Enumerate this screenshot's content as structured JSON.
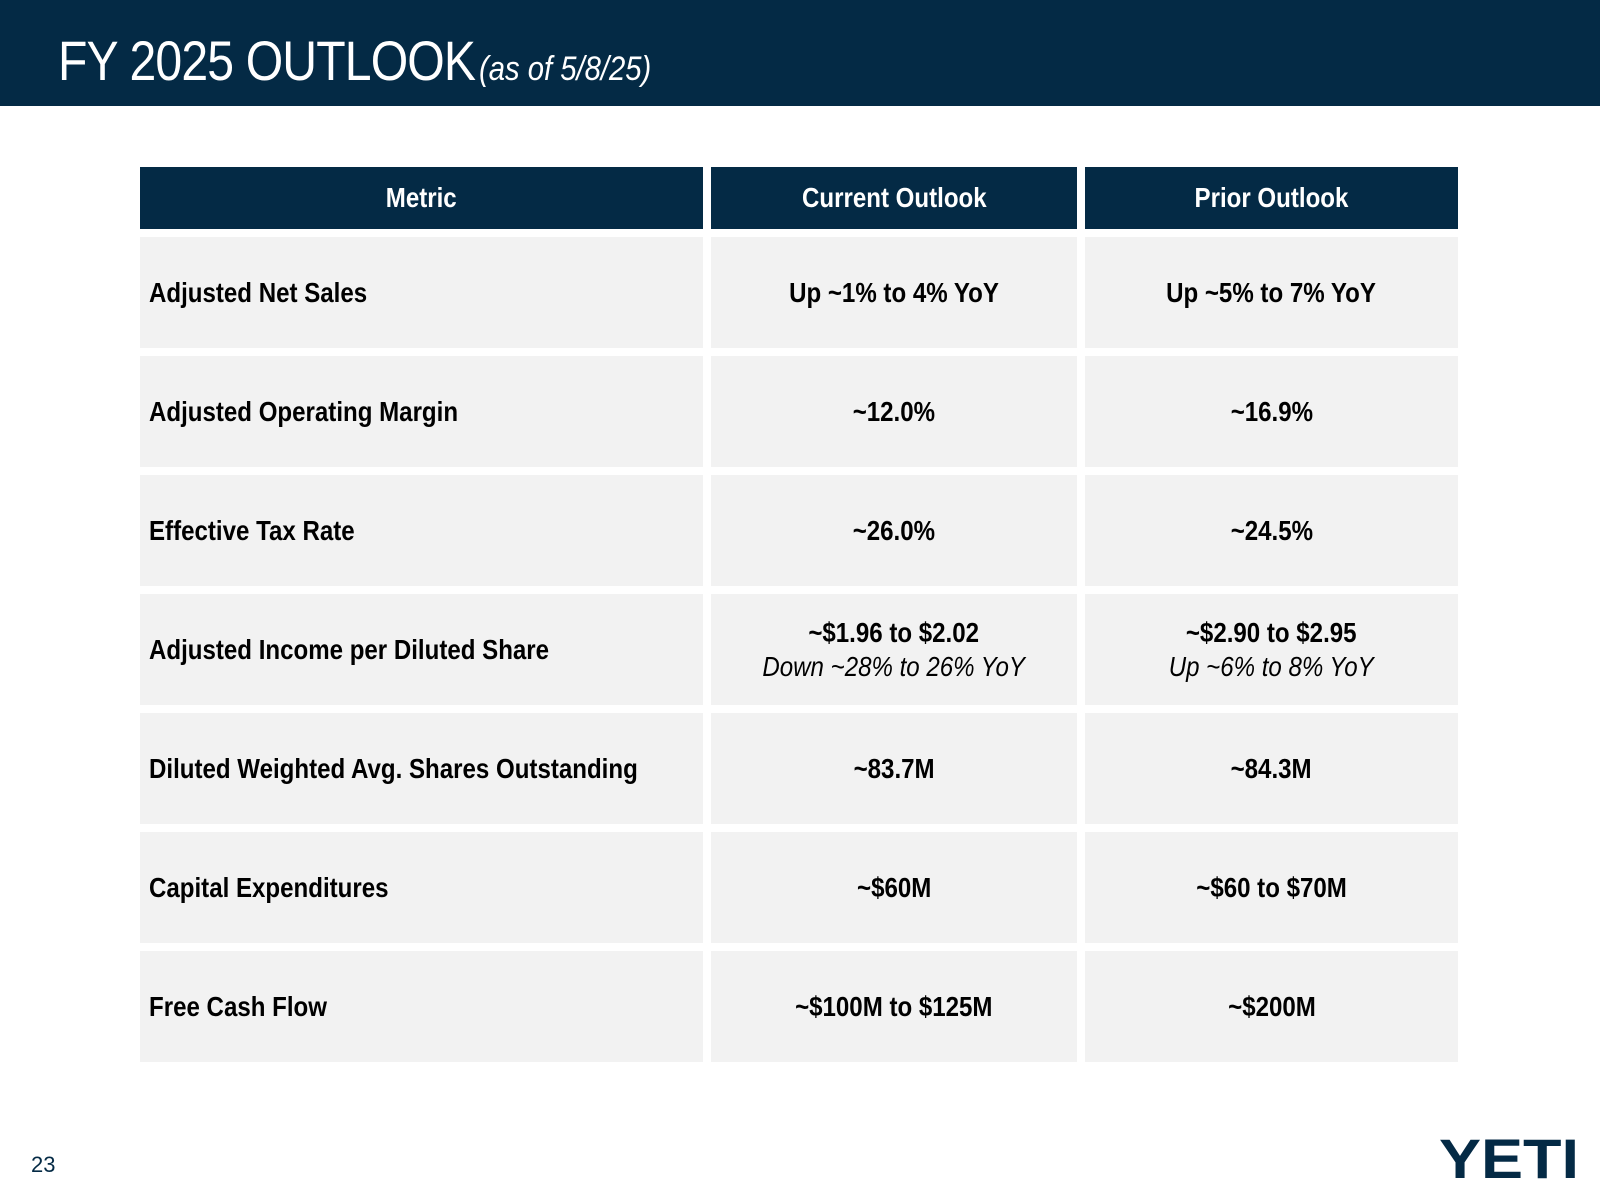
{
  "header": {
    "title": "FY 2025 OUTLOOK",
    "title_note": "(as of 5/8/25)",
    "background_color": "#042a45"
  },
  "table": {
    "columns": [
      "Metric",
      "Current Outlook",
      "Prior Outlook"
    ],
    "rows": [
      {
        "metric": "Adjusted Net Sales",
        "current": "Up ~1% to 4% YoY",
        "current_sub": "",
        "prior": "Up ~5% to 7% YoY",
        "prior_sub": ""
      },
      {
        "metric": "Adjusted Operating Margin",
        "current": "~12.0%",
        "current_sub": "",
        "prior": "~16.9%",
        "prior_sub": ""
      },
      {
        "metric": "Effective Tax Rate",
        "current": "~26.0%",
        "current_sub": "",
        "prior": "~24.5%",
        "prior_sub": ""
      },
      {
        "metric": "Adjusted Income per Diluted Share",
        "current": "~$1.96 to $2.02",
        "current_sub": "Down ~28% to 26% YoY",
        "prior": "~$2.90 to $2.95",
        "prior_sub": "Up ~6% to 8% YoY"
      },
      {
        "metric": "Diluted Weighted Avg. Shares Outstanding",
        "current": "~83.7M",
        "current_sub": "",
        "prior": "~84.3M",
        "prior_sub": ""
      },
      {
        "metric": "Capital Expenditures",
        "current": "~$60M",
        "current_sub": "",
        "prior": "~$60 to $70M",
        "prior_sub": ""
      },
      {
        "metric": "Free Cash Flow",
        "current": "~$100M to $125M",
        "current_sub": "",
        "prior": "~$200M",
        "prior_sub": ""
      }
    ],
    "header_color": "#042a45",
    "cell_color": "#f2f2f2"
  },
  "footer": {
    "page_number": "23",
    "logo_text": "YETI",
    "logo_color": "#042a45"
  }
}
